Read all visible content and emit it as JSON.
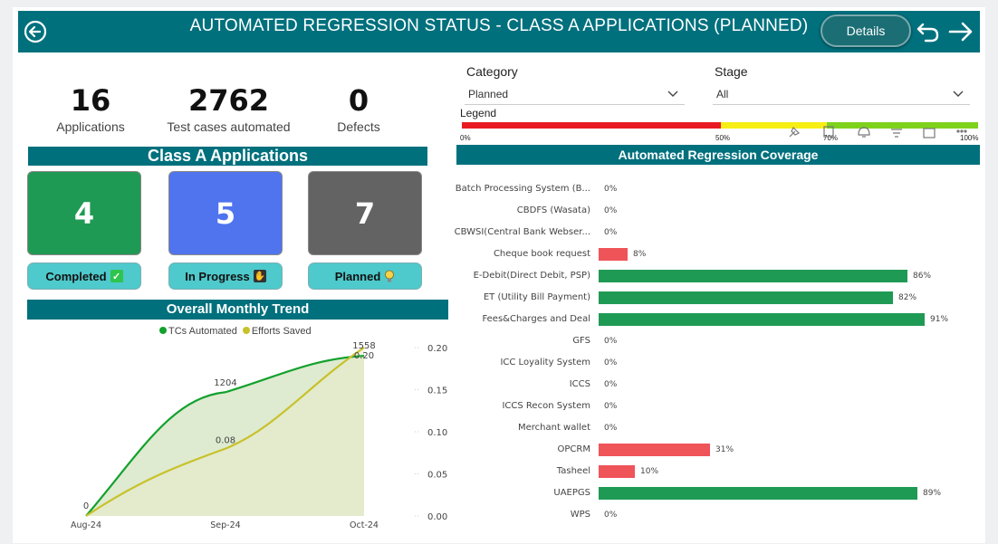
{
  "header": {
    "title": "AUTOMATED REGRESSION STATUS - CLASS A APPLICATIONS (PLANNED)",
    "details_label": "Details"
  },
  "kpis": [
    {
      "value": "16",
      "label": "Applications"
    },
    {
      "value": "2762",
      "label": "Test cases automated"
    },
    {
      "value": "0",
      "label": "Defects"
    }
  ],
  "class_a": {
    "title": "Class A Applications",
    "cards": [
      {
        "value": "4",
        "label": "Completed",
        "color": "#1f9a54"
      },
      {
        "value": "5",
        "label": "In Progress",
        "color": "#4f74ee"
      },
      {
        "value": "7",
        "label": "Planned",
        "color": "#636363"
      }
    ]
  },
  "filters": {
    "category_label": "Category",
    "category_value": "Planned",
    "stage_label": "Stage",
    "stage_value": "All"
  },
  "legend": {
    "title": "Legend",
    "ticks": [
      "0%",
      "50%",
      "70%",
      "100%"
    ]
  },
  "coverage": {
    "title": "Automated Regression Coverage",
    "rows": [
      {
        "label": "Batch Processing System (B...",
        "value": 0,
        "text": "0%"
      },
      {
        "label": "CBDFS (Wasata)",
        "value": 0,
        "text": "0%"
      },
      {
        "label": "CBWSI(Central Bank Webser...",
        "value": 0,
        "text": "0%"
      },
      {
        "label": "Cheque book request",
        "value": 8,
        "text": "8%"
      },
      {
        "label": "E-Debit(Direct Debit, PSP)",
        "value": 86,
        "text": "86%"
      },
      {
        "label": "ET (Utility Bill Payment)",
        "value": 82,
        "text": "82%"
      },
      {
        "label": "Fees&Charges and Deal",
        "value": 91,
        "text": "91%"
      },
      {
        "label": "GFS",
        "value": 0,
        "text": "0%"
      },
      {
        "label": "ICC Loyality System",
        "value": 0,
        "text": "0%"
      },
      {
        "label": "ICCS",
        "value": 0,
        "text": "0%"
      },
      {
        "label": "ICCS Recon System",
        "value": 0,
        "text": "0%"
      },
      {
        "label": "Merchant wallet",
        "value": 0,
        "text": "0%"
      },
      {
        "label": "OPCRM",
        "value": 31,
        "text": "31%"
      },
      {
        "label": "Tasheel",
        "value": 10,
        "text": "10%"
      },
      {
        "label": "UAEPGS",
        "value": 89,
        "text": "89%"
      },
      {
        "label": "WPS",
        "value": 0,
        "text": "0%"
      }
    ],
    "colors": {
      "low": "#ef5459",
      "high": "#1f9a54"
    }
  },
  "trend": {
    "title": "Overall Monthly Trend",
    "legend_tcs": "TCs Automated",
    "legend_efforts": "Efforts Saved",
    "x_labels": [
      "Aug-24",
      "Sep-24",
      "Oct-24"
    ],
    "y2_ticks": [
      "0.20",
      "0.15",
      "0.10",
      "0.05",
      "0.00"
    ],
    "tcs_labels": [
      "0",
      "1204",
      "1558"
    ],
    "efforts_labels": [
      "0.08",
      "0.20"
    ]
  },
  "chart_data": {
    "type": "line",
    "title": "Overall Monthly Trend",
    "categories": [
      "Aug-24",
      "Sep-24",
      "Oct-24"
    ],
    "series": [
      {
        "name": "TCs Automated",
        "values": [
          0,
          1204,
          1558
        ],
        "axis": "left"
      },
      {
        "name": "Efforts Saved",
        "values": [
          0,
          0.08,
          0.2
        ],
        "axis": "right"
      }
    ],
    "y2lim": [
      0,
      0.2
    ]
  }
}
